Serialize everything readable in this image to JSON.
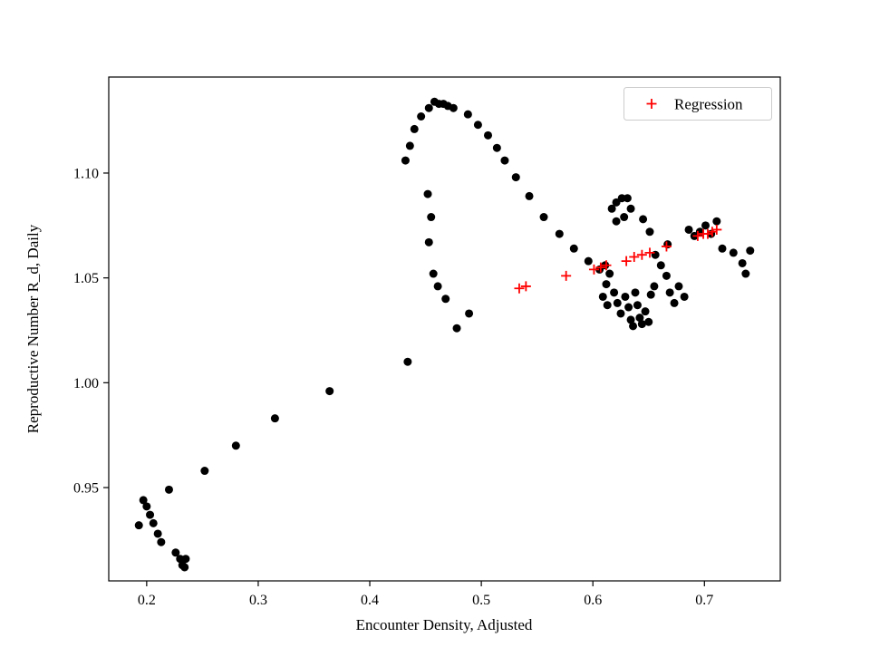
{
  "figure": {
    "background_color": "#ffffff",
    "axes_edge_color": "#000000"
  },
  "chart_data": {
    "type": "scatter",
    "title": "",
    "xlabel": "Encounter Density, Adjusted",
    "ylabel": "Reproductive Number R_d, Daily",
    "xlim": [
      0.166,
      0.768
    ],
    "ylim": [
      0.9055,
      1.1458
    ],
    "grid": false,
    "legend_position": "upper right",
    "xticks": [
      0.2,
      0.3,
      0.4,
      0.5,
      0.6,
      0.7
    ],
    "xtick_labels": [
      "0.2",
      "0.3",
      "0.4",
      "0.5",
      "0.6",
      "0.7"
    ],
    "yticks": [
      0.95,
      1.0,
      1.05,
      1.1
    ],
    "ytick_labels": [
      "0.95",
      "1.00",
      "1.05",
      "1.10"
    ],
    "series": [
      {
        "name": "Observed",
        "marker": "circle",
        "color": "#000000",
        "in_legend": false,
        "points": [
          [
            0.193,
            0.932
          ],
          [
            0.197,
            0.944
          ],
          [
            0.2,
            0.941
          ],
          [
            0.203,
            0.937
          ],
          [
            0.206,
            0.933
          ],
          [
            0.21,
            0.928
          ],
          [
            0.213,
            0.924
          ],
          [
            0.22,
            0.949
          ],
          [
            0.226,
            0.919
          ],
          [
            0.23,
            0.916
          ],
          [
            0.232,
            0.913
          ],
          [
            0.234,
            0.912
          ],
          [
            0.235,
            0.916
          ],
          [
            0.252,
            0.958
          ],
          [
            0.28,
            0.97
          ],
          [
            0.315,
            0.983
          ],
          [
            0.364,
            0.996
          ],
          [
            0.434,
            1.01
          ],
          [
            0.432,
            1.106
          ],
          [
            0.436,
            1.113
          ],
          [
            0.44,
            1.121
          ],
          [
            0.446,
            1.127
          ],
          [
            0.453,
            1.131
          ],
          [
            0.458,
            1.134
          ],
          [
            0.462,
            1.133
          ],
          [
            0.466,
            1.133
          ],
          [
            0.47,
            1.132
          ],
          [
            0.475,
            1.131
          ],
          [
            0.488,
            1.128
          ],
          [
            0.497,
            1.123
          ],
          [
            0.506,
            1.118
          ],
          [
            0.514,
            1.112
          ],
          [
            0.521,
            1.106
          ],
          [
            0.531,
            1.098
          ],
          [
            0.543,
            1.089
          ],
          [
            0.556,
            1.079
          ],
          [
            0.57,
            1.071
          ],
          [
            0.583,
            1.064
          ],
          [
            0.596,
            1.058
          ],
          [
            0.606,
            1.054
          ],
          [
            0.452,
            1.09
          ],
          [
            0.455,
            1.079
          ],
          [
            0.453,
            1.067
          ],
          [
            0.457,
            1.052
          ],
          [
            0.461,
            1.046
          ],
          [
            0.468,
            1.04
          ],
          [
            0.489,
            1.033
          ],
          [
            0.478,
            1.026
          ],
          [
            0.611,
            1.056
          ],
          [
            0.615,
            1.052
          ],
          [
            0.612,
            1.047
          ],
          [
            0.609,
            1.041
          ],
          [
            0.613,
            1.037
          ],
          [
            0.617,
            1.083
          ],
          [
            0.621,
            1.086
          ],
          [
            0.626,
            1.088
          ],
          [
            0.631,
            1.088
          ],
          [
            0.634,
            1.083
          ],
          [
            0.628,
            1.079
          ],
          [
            0.621,
            1.077
          ],
          [
            0.619,
            1.043
          ],
          [
            0.622,
            1.038
          ],
          [
            0.625,
            1.033
          ],
          [
            0.629,
            1.041
          ],
          [
            0.632,
            1.036
          ],
          [
            0.634,
            1.03
          ],
          [
            0.636,
            1.027
          ],
          [
            0.638,
            1.043
          ],
          [
            0.64,
            1.037
          ],
          [
            0.642,
            1.031
          ],
          [
            0.644,
            1.028
          ],
          [
            0.647,
            1.034
          ],
          [
            0.65,
            1.029
          ],
          [
            0.652,
            1.042
          ],
          [
            0.655,
            1.046
          ],
          [
            0.645,
            1.078
          ],
          [
            0.651,
            1.072
          ],
          [
            0.656,
            1.061
          ],
          [
            0.661,
            1.056
          ],
          [
            0.666,
            1.051
          ],
          [
            0.669,
            1.043
          ],
          [
            0.673,
            1.038
          ],
          [
            0.677,
            1.046
          ],
          [
            0.682,
            1.041
          ],
          [
            0.667,
            1.066
          ],
          [
            0.686,
            1.073
          ],
          [
            0.691,
            1.07
          ],
          [
            0.696,
            1.072
          ],
          [
            0.701,
            1.075
          ],
          [
            0.706,
            1.071
          ],
          [
            0.711,
            1.077
          ],
          [
            0.716,
            1.064
          ],
          [
            0.726,
            1.062
          ],
          [
            0.734,
            1.057
          ],
          [
            0.737,
            1.052
          ],
          [
            0.741,
            1.063
          ]
        ]
      },
      {
        "name": "Regression",
        "marker": "plus",
        "color": "#ff0000",
        "in_legend": true,
        "points": [
          [
            0.534,
            1.045
          ],
          [
            0.54,
            1.046
          ],
          [
            0.576,
            1.051
          ],
          [
            0.601,
            1.054
          ],
          [
            0.607,
            1.055
          ],
          [
            0.612,
            1.056
          ],
          [
            0.63,
            1.058
          ],
          [
            0.637,
            1.06
          ],
          [
            0.644,
            1.061
          ],
          [
            0.651,
            1.062
          ],
          [
            0.666,
            1.065
          ],
          [
            0.694,
            1.07
          ],
          [
            0.699,
            1.071
          ],
          [
            0.703,
            1.071
          ],
          [
            0.707,
            1.072
          ],
          [
            0.711,
            1.073
          ]
        ]
      }
    ],
    "legend": {
      "entries": [
        "Regression"
      ]
    }
  }
}
